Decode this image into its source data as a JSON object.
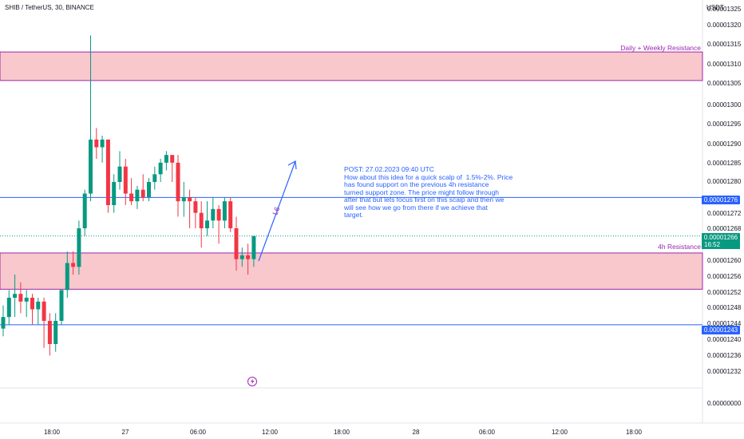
{
  "header": {
    "symbol": "SHIB / TetherUS, 30, BINANCE",
    "currency": "USDT"
  },
  "colors": {
    "up": "#089981",
    "down": "#f23645",
    "zone_fill": "#f8c8cc",
    "zone_border": "#9c27b0",
    "level_line": "#2962ff",
    "note_text": "#2962ff"
  },
  "price_axis": {
    "labels": [
      "0.00001325",
      "0.00001320",
      "0.00001315",
      "0.00001310",
      "0.00001305",
      "0.00001300",
      "0.00001295",
      "0.00001290",
      "0.00001285",
      "0.00001280",
      "0.00001272",
      "0.00001268",
      "0.00001260",
      "0.00001256",
      "0.00001252",
      "0.00001248",
      "0.00001244",
      "0.00001240",
      "0.00001236",
      "0.00001232",
      "0.00000000"
    ]
  },
  "time_axis": {
    "labels": [
      "18:00",
      "27",
      "06:00",
      "12:00",
      "18:00",
      "28",
      "06:00",
      "12:00",
      "18:00"
    ]
  },
  "tags": {
    "upper_level": "0.00001276",
    "current_price": "0.00001266",
    "countdown": "16:52",
    "lower_level": "0.00001243"
  },
  "zones": {
    "upper_label": "Daily + Weekly Resistance",
    "lower_label": "4h Resistance"
  },
  "annotation": {
    "arrow_label": "L6",
    "note_lines": [
      "POST: 27.02.2023 09:40 UTC",
      "How about this idea for a quick scalp of  1.5%-2%. Price",
      "has found support on the previous 4h resistance",
      "turned support zone. The price might follow through",
      "after that but lets focus first on this scalp and then we",
      "will see how we go from there if we achieve that",
      "target."
    ]
  },
  "chart_data": {
    "type": "candlestick",
    "symbol": "SHIB / TetherUS",
    "interval_minutes": 30,
    "exchange": "BINANCE",
    "levels": {
      "daily_weekly_resistance_zone": [
        1.3063e-05,
        1.3137e-05
      ],
      "h4_resistance_zone": [
        1.2522e-05,
        1.2616e-05
      ],
      "upper_line": 1.276e-05,
      "lower_line": 1.243e-05,
      "current_price": 1.266e-05
    },
    "candles": [
      {
        "o": 1.242e-05,
        "h": 1.248e-05,
        "l": 1.24e-05,
        "c": 1.245e-05
      },
      {
        "o": 1.245e-05,
        "h": 1.252e-05,
        "l": 1.243e-05,
        "c": 1.25e-05
      },
      {
        "o": 1.25e-05,
        "h": 1.256e-05,
        "l": 1.245e-05,
        "c": 1.251e-05
      },
      {
        "o": 1.251e-05,
        "h": 1.254e-05,
        "l": 1.246e-05,
        "c": 1.249e-05
      },
      {
        "o": 1.249e-05,
        "h": 1.252e-05,
        "l": 1.245e-05,
        "c": 1.25e-05
      },
      {
        "o": 1.25e-05,
        "h": 1.251e-05,
        "l": 1.243e-05,
        "c": 1.247e-05
      },
      {
        "o": 1.247e-05,
        "h": 1.25e-05,
        "l": 1.243e-05,
        "c": 1.249e-05
      },
      {
        "o": 1.249e-05,
        "h": 1.25e-05,
        "l": 1.237e-05,
        "c": 1.244e-05
      },
      {
        "o": 1.244e-05,
        "h": 1.246e-05,
        "l": 1.235e-05,
        "c": 1.238e-05
      },
      {
        "o": 1.238e-05,
        "h": 1.246e-05,
        "l": 1.236e-05,
        "c": 1.244e-05
      },
      {
        "o": 1.244e-05,
        "h": 1.252e-05,
        "l": 1.243e-05,
        "c": 1.252e-05
      },
      {
        "o": 1.252e-05,
        "h": 1.262e-05,
        "l": 1.25e-05,
        "c": 1.259e-05
      },
      {
        "o": 1.259e-05,
        "h": 1.262e-05,
        "l": 1.256e-05,
        "c": 1.258e-05
      },
      {
        "o": 1.258e-05,
        "h": 1.27e-05,
        "l": 1.256e-05,
        "c": 1.268e-05
      },
      {
        "o": 1.268e-05,
        "h": 1.278e-05,
        "l": 1.266e-05,
        "c": 1.277e-05
      },
      {
        "o": 1.277e-05,
        "h": 1.318e-05,
        "l": 1.275e-05,
        "c": 1.291e-05
      },
      {
        "o": 1.291e-05,
        "h": 1.294e-05,
        "l": 1.286e-05,
        "c": 1.289e-05
      },
      {
        "o": 1.289e-05,
        "h": 1.292e-05,
        "l": 1.285e-05,
        "c": 1.291e-05
      },
      {
        "o": 1.291e-05,
        "h": 1.291e-05,
        "l": 1.272e-05,
        "c": 1.274e-05
      },
      {
        "o": 1.274e-05,
        "h": 1.282e-05,
        "l": 1.272e-05,
        "c": 1.28e-05
      },
      {
        "o": 1.28e-05,
        "h": 1.288e-05,
        "l": 1.278e-05,
        "c": 1.284e-05
      },
      {
        "o": 1.284e-05,
        "h": 1.286e-05,
        "l": 1.274e-05,
        "c": 1.277e-05
      },
      {
        "o": 1.277e-05,
        "h": 1.281e-05,
        "l": 1.274e-05,
        "c": 1.275e-05
      },
      {
        "o": 1.275e-05,
        "h": 1.279e-05,
        "l": 1.273e-05,
        "c": 1.278e-05
      },
      {
        "o": 1.278e-05,
        "h": 1.282e-05,
        "l": 1.275e-05,
        "c": 1.276e-05
      },
      {
        "o": 1.276e-05,
        "h": 1.281e-05,
        "l": 1.275e-05,
        "c": 1.28e-05
      },
      {
        "o": 1.28e-05,
        "h": 1.284e-05,
        "l": 1.278e-05,
        "c": 1.282e-05
      },
      {
        "o": 1.282e-05,
        "h": 1.286e-05,
        "l": 1.28e-05,
        "c": 1.285e-05
      },
      {
        "o": 1.285e-05,
        "h": 1.288e-05,
        "l": 1.283e-05,
        "c": 1.287e-05
      },
      {
        "o": 1.287e-05,
        "h": 1.287e-05,
        "l": 1.28e-05,
        "c": 1.285e-05
      },
      {
        "o": 1.285e-05,
        "h": 1.287e-05,
        "l": 1.271e-05,
        "c": 1.275e-05
      },
      {
        "o": 1.275e-05,
        "h": 1.28e-05,
        "l": 1.271e-05,
        "c": 1.276e-05
      },
      {
        "o": 1.276e-05,
        "h": 1.278e-05,
        "l": 1.268e-05,
        "c": 1.275e-05
      },
      {
        "o": 1.275e-05,
        "h": 1.276e-05,
        "l": 1.268e-05,
        "c": 1.272e-05
      },
      {
        "o": 1.272e-05,
        "h": 1.275e-05,
        "l": 1.263e-05,
        "c": 1.268e-05
      },
      {
        "o": 1.268e-05,
        "h": 1.275e-05,
        "l": 1.266e-05,
        "c": 1.27e-05
      },
      {
        "o": 1.27e-05,
        "h": 1.276e-05,
        "l": 1.268e-05,
        "c": 1.273e-05
      },
      {
        "o": 1.273e-05,
        "h": 1.274e-05,
        "l": 1.264e-05,
        "c": 1.27e-05
      },
      {
        "o": 1.27e-05,
        "h": 1.276e-05,
        "l": 1.268e-05,
        "c": 1.275e-05
      },
      {
        "o": 1.275e-05,
        "h": 1.276e-05,
        "l": 1.267e-05,
        "c": 1.268e-05
      },
      {
        "o": 1.268e-05,
        "h": 1.271e-05,
        "l": 1.257e-05,
        "c": 1.26e-05
      },
      {
        "o": 1.26e-05,
        "h": 1.263e-05,
        "l": 1.258e-05,
        "c": 1.261e-05
      },
      {
        "o": 1.261e-05,
        "h": 1.264e-05,
        "l": 1.256e-05,
        "c": 1.26e-05
      },
      {
        "o": 1.26e-05,
        "h": 1.266e-05,
        "l": 1.258e-05,
        "c": 1.266e-05
      }
    ],
    "x_labels": [
      "18:00",
      "27",
      "06:00",
      "12:00",
      "18:00",
      "28",
      "06:00",
      "12:00",
      "18:00"
    ],
    "ylabel": "USDT"
  }
}
